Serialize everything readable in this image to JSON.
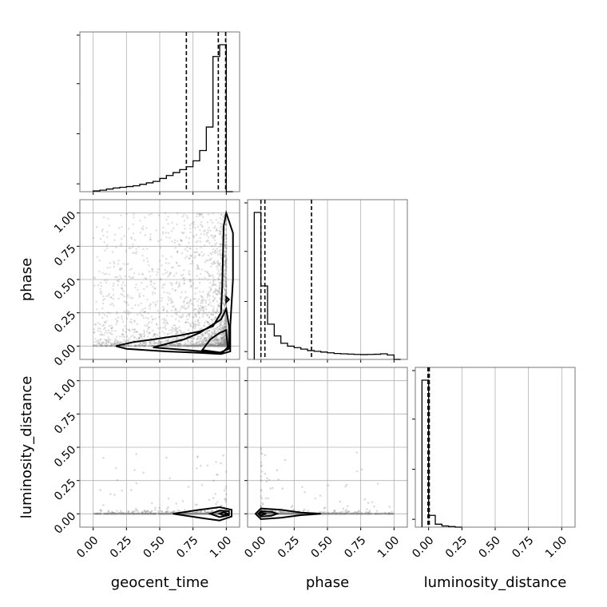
{
  "chart_data": {
    "type": "corner",
    "parameters": [
      "geocent_time",
      "phase",
      "luminosity_distance"
    ],
    "axis_range": [
      -0.1,
      1.1
    ],
    "ticks": [
      0.0,
      0.25,
      0.5,
      0.75,
      1.0
    ],
    "tick_labels": [
      "0.00",
      "0.25",
      "0.50",
      "0.75",
      "1.00"
    ],
    "grid": true,
    "histograms": [
      {
        "parameter": "geocent_time",
        "bin_edges": [
          0.0,
          0.05,
          0.1,
          0.15,
          0.2,
          0.25,
          0.3,
          0.35,
          0.4,
          0.45,
          0.5,
          0.55,
          0.6,
          0.65,
          0.7,
          0.75,
          0.8,
          0.85,
          0.9,
          0.95,
          1.0,
          1.05
        ],
        "counts": [
          0.005,
          0.01,
          0.018,
          0.025,
          0.03,
          0.035,
          0.04,
          0.05,
          0.06,
          0.07,
          0.09,
          0.11,
          0.13,
          0.15,
          0.17,
          0.21,
          0.28,
          0.44,
          0.92,
          1.0,
          0.0
        ],
        "quantiles": [
          0.7,
          0.94,
          0.995
        ]
      },
      {
        "parameter": "phase",
        "bin_edges": [
          -0.05,
          0.0,
          0.05,
          0.1,
          0.15,
          0.2,
          0.25,
          0.3,
          0.35,
          0.4,
          0.45,
          0.5,
          0.55,
          0.6,
          0.65,
          0.7,
          0.75,
          0.8,
          0.85,
          0.9,
          0.95,
          1.0,
          1.05
        ],
        "counts": [
          1.0,
          0.5,
          0.24,
          0.16,
          0.11,
          0.09,
          0.08,
          0.07,
          0.06,
          0.055,
          0.05,
          0.045,
          0.04,
          0.038,
          0.036,
          0.034,
          0.033,
          0.034,
          0.035,
          0.038,
          0.03,
          0.0
        ],
        "quantiles": [
          0.0,
          0.03,
          0.38
        ]
      },
      {
        "parameter": "luminosity_distance",
        "bin_edges": [
          -0.05,
          0.0,
          0.05,
          0.1,
          0.15,
          0.2,
          0.25
        ],
        "counts": [
          1.0,
          0.08,
          0.02,
          0.008,
          0.004,
          0.0
        ],
        "quantiles": [
          -0.005,
          0.0,
          0.005
        ]
      }
    ],
    "contours_2d": [
      {
        "x": "geocent_time",
        "y": "phase",
        "levels": [
          {
            "path": [
              [
                0.17,
                0.0
              ],
              [
                0.25,
                -0.02
              ],
              [
                0.55,
                -0.04
              ],
              [
                0.8,
                -0.05
              ],
              [
                0.96,
                -0.06
              ],
              [
                1.03,
                -0.04
              ],
              [
                1.03,
                0.15
              ],
              [
                1.05,
                0.5
              ],
              [
                1.05,
                0.85
              ],
              [
                1.0,
                1.0
              ],
              [
                0.98,
                0.9
              ],
              [
                0.97,
                0.45
              ],
              [
                0.96,
                0.25
              ],
              [
                0.9,
                0.15
              ],
              [
                0.8,
                0.11
              ],
              [
                0.65,
                0.08
              ],
              [
                0.45,
                0.05
              ],
              [
                0.3,
                0.03
              ],
              [
                0.17,
                0.0
              ]
            ]
          },
          {
            "path": [
              [
                0.45,
                -0.01
              ],
              [
                0.7,
                -0.03
              ],
              [
                0.95,
                -0.05
              ],
              [
                1.02,
                -0.02
              ],
              [
                1.02,
                0.15
              ],
              [
                1.0,
                0.28
              ],
              [
                0.96,
                0.2
              ],
              [
                0.8,
                0.1
              ],
              [
                0.68,
                0.05
              ],
              [
                0.45,
                -0.01
              ]
            ]
          },
          {
            "path": [
              [
                0.82,
                -0.03
              ],
              [
                0.97,
                -0.05
              ],
              [
                1.01,
                -0.01
              ],
              [
                1.0,
                0.12
              ],
              [
                0.95,
                0.1
              ],
              [
                0.88,
                0.05
              ],
              [
                0.82,
                -0.03
              ]
            ]
          },
          {
            "path": [
              [
                1.0,
                0.33
              ],
              [
                1.02,
                0.35
              ],
              [
                1.0,
                0.37
              ],
              [
                1.0,
                0.33
              ]
            ]
          }
        ]
      },
      {
        "x": "geocent_time",
        "y": "luminosity_distance",
        "levels": [
          {
            "path": [
              [
                0.6,
                0.0
              ],
              [
                0.8,
                -0.03
              ],
              [
                0.95,
                -0.05
              ],
              [
                1.04,
                -0.02
              ],
              [
                1.04,
                0.03
              ],
              [
                0.95,
                0.05
              ],
              [
                0.8,
                0.03
              ],
              [
                0.6,
                0.0
              ]
            ]
          },
          {
            "path": [
              [
                0.88,
                0.0
              ],
              [
                0.95,
                -0.025
              ],
              [
                1.02,
                -0.01
              ],
              [
                1.02,
                0.02
              ],
              [
                0.95,
                0.025
              ],
              [
                0.88,
                0.0
              ]
            ]
          },
          {
            "path": [
              [
                0.95,
                0.0
              ],
              [
                0.98,
                -0.012
              ],
              [
                1.01,
                0.0
              ],
              [
                0.98,
                0.012
              ],
              [
                0.95,
                0.0
              ]
            ]
          }
        ]
      },
      {
        "x": "phase",
        "y": "luminosity_distance",
        "levels": [
          {
            "path": [
              [
                -0.04,
                0.0
              ],
              [
                0.0,
                -0.04
              ],
              [
                0.15,
                -0.03
              ],
              [
                0.3,
                -0.01
              ],
              [
                0.45,
                0.0
              ],
              [
                0.3,
                0.01
              ],
              [
                0.15,
                0.03
              ],
              [
                0.0,
                0.04
              ],
              [
                -0.04,
                0.0
              ]
            ]
          },
          {
            "path": [
              [
                -0.02,
                0.0
              ],
              [
                0.0,
                -0.02
              ],
              [
                0.08,
                -0.015
              ],
              [
                0.12,
                0.0
              ],
              [
                0.08,
                0.015
              ],
              [
                0.0,
                0.02
              ],
              [
                -0.02,
                0.0
              ]
            ]
          },
          {
            "path": [
              [
                -0.01,
                0.0
              ],
              [
                0.0,
                -0.01
              ],
              [
                0.04,
                0.0
              ],
              [
                0.0,
                0.01
              ],
              [
                -0.01,
                0.0
              ]
            ]
          }
        ]
      }
    ]
  }
}
